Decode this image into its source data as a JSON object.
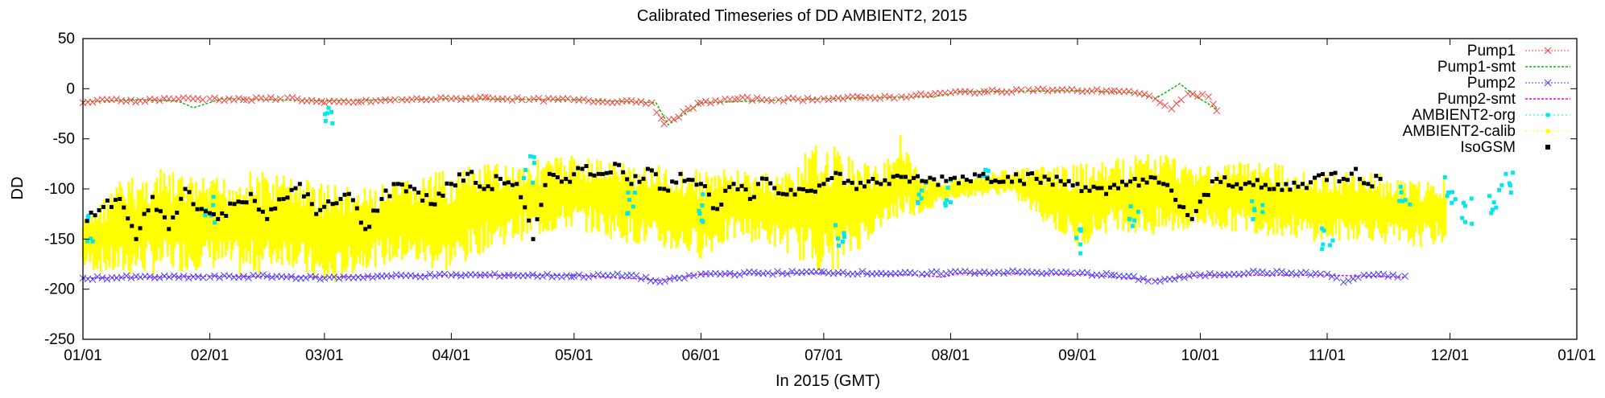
{
  "chart_data": {
    "type": "scatter",
    "title": "Calibrated Timeseries of DD AMBIENT2, 2015",
    "xlabel": "In 2015 (GMT)",
    "ylabel": "DD",
    "ylim": [
      -250,
      50
    ],
    "yticks": [
      50,
      0,
      -50,
      -100,
      -150,
      -200,
      -250
    ],
    "xlim": [
      "2015-01-01",
      "2016-01-01"
    ],
    "xticks": [
      "2015-01-01",
      "2015-02-01",
      "2015-03-01",
      "2015-04-01",
      "2015-05-01",
      "2015-06-01",
      "2015-07-01",
      "2015-08-01",
      "2015-09-01",
      "2015-10-01",
      "2015-11-01",
      "2015-12-01",
      "2016-01-01"
    ],
    "xtick_labels": [
      "01/01",
      "02/01",
      "03/01",
      "04/01",
      "05/01",
      "06/01",
      "07/01",
      "08/01",
      "09/01",
      "10/01",
      "11/01",
      "12/01",
      "01/01"
    ],
    "legend_position": "top-right",
    "grid": false,
    "series": [
      {
        "name": "Pump1",
        "style": "cross",
        "color": "#ff4040",
        "points": [
          [
            "2015-01-01",
            -14
          ],
          [
            "2015-01-08",
            -11
          ],
          [
            "2015-01-15",
            -12
          ],
          [
            "2015-01-22",
            -10
          ],
          [
            "2015-02-01",
            -10
          ],
          [
            "2015-02-10",
            -11
          ],
          [
            "2015-02-20",
            -9
          ],
          [
            "2015-03-01",
            -14
          ],
          [
            "2015-03-10",
            -13
          ],
          [
            "2015-03-20",
            -11
          ],
          [
            "2015-04-01",
            -10
          ],
          [
            "2015-04-10",
            -9
          ],
          [
            "2015-04-20",
            -11
          ],
          [
            "2015-05-01",
            -11
          ],
          [
            "2015-05-08",
            -13
          ],
          [
            "2015-05-15",
            -12
          ],
          [
            "2015-05-20",
            -14
          ],
          [
            "2015-05-23",
            -35
          ],
          [
            "2015-06-01",
            -14
          ],
          [
            "2015-06-10",
            -10
          ],
          [
            "2015-06-20",
            -11
          ],
          [
            "2015-07-01",
            -10
          ],
          [
            "2015-07-10",
            -9
          ],
          [
            "2015-07-20",
            -8
          ],
          [
            "2015-08-01",
            -4
          ],
          [
            "2015-08-10",
            -3
          ],
          [
            "2015-08-20",
            -1
          ],
          [
            "2015-09-01",
            -2
          ],
          [
            "2015-09-10",
            -2
          ],
          [
            "2015-09-15",
            -4
          ],
          [
            "2015-09-20",
            -10
          ],
          [
            "2015-09-24",
            -20
          ],
          [
            "2015-09-28",
            -5
          ],
          [
            "2015-10-03",
            -8
          ],
          [
            "2015-10-05",
            -22
          ]
        ]
      },
      {
        "name": "Pump1-smt",
        "style": "line-dashed",
        "color": "#00c000",
        "points": [
          [
            "2015-01-01",
            -13
          ],
          [
            "2015-01-15",
            -11
          ],
          [
            "2015-01-24",
            -12
          ],
          [
            "2015-01-28",
            -19
          ],
          [
            "2015-02-04",
            -10
          ],
          [
            "2015-03-01",
            -12
          ],
          [
            "2015-04-01",
            -10
          ],
          [
            "2015-05-01",
            -11
          ],
          [
            "2015-05-21",
            -14
          ],
          [
            "2015-05-24",
            -36
          ],
          [
            "2015-06-01",
            -14
          ],
          [
            "2015-07-01",
            -10
          ],
          [
            "2015-07-25",
            -8
          ],
          [
            "2015-07-28",
            -8
          ],
          [
            "2015-08-03",
            -3
          ],
          [
            "2015-09-01",
            -2
          ],
          [
            "2015-09-15",
            -4
          ],
          [
            "2015-09-20",
            -10
          ],
          [
            "2015-09-26",
            5
          ],
          [
            "2015-09-30",
            -8
          ],
          [
            "2015-10-05",
            -20
          ]
        ]
      },
      {
        "name": "Pump2",
        "style": "cross",
        "color": "#4040ff",
        "points": [
          [
            "2015-01-01",
            -189
          ],
          [
            "2015-01-15",
            -188
          ],
          [
            "2015-02-01",
            -188
          ],
          [
            "2015-02-15",
            -187
          ],
          [
            "2015-03-01",
            -189
          ],
          [
            "2015-03-15",
            -187
          ],
          [
            "2015-04-01",
            -186
          ],
          [
            "2015-04-15",
            -186
          ],
          [
            "2015-05-01",
            -187
          ],
          [
            "2015-05-15",
            -186
          ],
          [
            "2015-05-22",
            -193
          ],
          [
            "2015-06-01",
            -185
          ],
          [
            "2015-06-15",
            -184
          ],
          [
            "2015-07-01",
            -183
          ],
          [
            "2015-07-15",
            -184
          ],
          [
            "2015-07-25",
            -185
          ],
          [
            "2015-08-01",
            -183
          ],
          [
            "2015-08-15",
            -183
          ],
          [
            "2015-09-01",
            -184
          ],
          [
            "2015-09-10",
            -186
          ],
          [
            "2015-09-20",
            -192
          ],
          [
            "2015-10-01",
            -186
          ],
          [
            "2015-10-15",
            -183
          ],
          [
            "2015-11-01",
            -185
          ],
          [
            "2015-11-05",
            -193
          ],
          [
            "2015-11-10",
            -186
          ],
          [
            "2015-11-20",
            -187
          ]
        ]
      },
      {
        "name": "Pump2-smt",
        "style": "line-dashed",
        "color": "#e000e0",
        "points": [
          [
            "2015-01-01",
            -189
          ],
          [
            "2015-02-01",
            -187
          ],
          [
            "2015-03-01",
            -188
          ],
          [
            "2015-04-01",
            -186
          ],
          [
            "2015-05-01",
            -186
          ],
          [
            "2015-05-22",
            -191
          ],
          [
            "2015-06-01",
            -185
          ],
          [
            "2015-07-01",
            -184
          ],
          [
            "2015-07-25",
            -186
          ],
          [
            "2015-07-30",
            -188
          ],
          [
            "2015-08-03",
            -184
          ],
          [
            "2015-09-01",
            -185
          ],
          [
            "2015-09-20",
            -191
          ],
          [
            "2015-10-01",
            -186
          ],
          [
            "2015-11-01",
            -186
          ],
          [
            "2015-11-20",
            -188
          ]
        ]
      },
      {
        "name": "AMBIENT2-org",
        "style": "dots",
        "color": "#00e8e8",
        "points": [
          [
            "2015-01-03",
            -140
          ],
          [
            "2015-02-01",
            -120
          ],
          [
            "2015-03-02",
            -30
          ],
          [
            "2015-04-20",
            -80
          ],
          [
            "2015-05-15",
            -110
          ],
          [
            "2015-06-01",
            -120
          ],
          [
            "2015-07-05",
            -150
          ],
          [
            "2015-07-25",
            -100
          ],
          [
            "2015-08-01",
            -105
          ],
          [
            "2015-08-10",
            -90
          ],
          [
            "2015-09-01",
            -150
          ],
          [
            "2015-09-15",
            -130
          ],
          [
            "2015-10-15",
            -120
          ],
          [
            "2015-11-01",
            -145
          ],
          [
            "2015-11-20",
            -110
          ],
          [
            "2015-12-01",
            -100
          ],
          [
            "2015-12-05",
            -120
          ],
          [
            "2015-12-12",
            -110
          ],
          [
            "2015-12-15",
            -90
          ]
        ]
      },
      {
        "name": "AMBIENT2-calib",
        "style": "band",
        "color": "#ffff00",
        "points": [
          [
            "2015-01-01",
            -130,
            -180
          ],
          [
            "2015-01-10",
            -90,
            -190
          ],
          [
            "2015-01-20",
            -80,
            -185
          ],
          [
            "2015-02-01",
            -90,
            -180
          ],
          [
            "2015-02-10",
            -80,
            -190
          ],
          [
            "2015-02-20",
            -85,
            -175
          ],
          [
            "2015-03-01",
            -90,
            -205
          ],
          [
            "2015-03-10",
            -100,
            -180
          ],
          [
            "2015-03-20",
            -90,
            -175
          ],
          [
            "2015-04-01",
            -80,
            -185
          ],
          [
            "2015-04-10",
            -75,
            -160
          ],
          [
            "2015-04-20",
            -70,
            -150
          ],
          [
            "2015-05-01",
            -65,
            -140
          ],
          [
            "2015-05-10",
            -70,
            -150
          ],
          [
            "2015-05-20",
            -75,
            -160
          ],
          [
            "2015-06-01",
            -80,
            -170
          ],
          [
            "2015-06-10",
            -80,
            -150
          ],
          [
            "2015-06-20",
            -85,
            -160
          ],
          [
            "2015-07-01",
            -50,
            -185
          ],
          [
            "2015-07-05",
            -60,
            -180
          ],
          [
            "2015-07-15",
            -80,
            -140
          ],
          [
            "2015-07-20",
            -40,
            -130
          ],
          [
            "2015-07-25",
            -90,
            -125
          ],
          [
            "2015-08-01",
            -90,
            -110
          ],
          [
            "2015-08-15",
            -80,
            -105
          ],
          [
            "2015-09-01",
            -75,
            -160
          ],
          [
            "2015-09-10",
            -70,
            -140
          ],
          [
            "2015-09-20",
            -60,
            -150
          ],
          [
            "2015-10-01",
            -75,
            -140
          ],
          [
            "2015-10-15",
            -70,
            -145
          ],
          [
            "2015-11-01",
            -85,
            -155
          ],
          [
            "2015-11-10",
            -80,
            -150
          ],
          [
            "2015-11-20",
            -90,
            -160
          ],
          [
            "2015-11-30",
            -90,
            -155
          ]
        ]
      },
      {
        "name": "IsoGSM",
        "style": "square",
        "color": "#000000",
        "points": [
          [
            "2015-01-02",
            -132
          ],
          [
            "2015-01-06",
            -118
          ],
          [
            "2015-01-10",
            -110
          ],
          [
            "2015-01-14",
            -150
          ],
          [
            "2015-01-18",
            -108
          ],
          [
            "2015-01-22",
            -140
          ],
          [
            "2015-01-26",
            -100
          ],
          [
            "2015-01-30",
            -120
          ],
          [
            "2015-02-03",
            -130
          ],
          [
            "2015-02-07",
            -115
          ],
          [
            "2015-02-11",
            -105
          ],
          [
            "2015-02-15",
            -130
          ],
          [
            "2015-02-19",
            -110
          ],
          [
            "2015-02-23",
            -95
          ],
          [
            "2015-02-27",
            -125
          ],
          [
            "2015-03-03",
            -115
          ],
          [
            "2015-03-07",
            -105
          ],
          [
            "2015-03-11",
            -140
          ],
          [
            "2015-03-15",
            -110
          ],
          [
            "2015-03-19",
            -95
          ],
          [
            "2015-03-23",
            -100
          ],
          [
            "2015-03-27",
            -115
          ],
          [
            "2015-04-01",
            -95
          ],
          [
            "2015-04-05",
            -85
          ],
          [
            "2015-04-09",
            -100
          ],
          [
            "2015-04-13",
            -90
          ],
          [
            "2015-04-17",
            -95
          ],
          [
            "2015-04-21",
            -150
          ],
          [
            "2015-04-25",
            -85
          ],
          [
            "2015-04-29",
            -90
          ],
          [
            "2015-05-03",
            -80
          ],
          [
            "2015-05-07",
            -85
          ],
          [
            "2015-05-11",
            -75
          ],
          [
            "2015-05-15",
            -95
          ],
          [
            "2015-05-19",
            -80
          ],
          [
            "2015-05-23",
            -100
          ],
          [
            "2015-05-27",
            -85
          ],
          [
            "2015-06-01",
            -95
          ],
          [
            "2015-06-05",
            -120
          ],
          [
            "2015-06-09",
            -95
          ],
          [
            "2015-06-13",
            -110
          ],
          [
            "2015-06-17",
            -90
          ],
          [
            "2015-06-21",
            -105
          ],
          [
            "2015-06-25",
            -100
          ],
          [
            "2015-07-01",
            -95
          ],
          [
            "2015-07-05",
            -85
          ],
          [
            "2015-07-09",
            -100
          ],
          [
            "2015-07-13",
            -90
          ],
          [
            "2015-07-17",
            -95
          ],
          [
            "2015-07-21",
            -88
          ],
          [
            "2015-07-25",
            -92
          ],
          [
            "2015-08-01",
            -90
          ],
          [
            "2015-08-08",
            -87
          ],
          [
            "2015-08-15",
            -88
          ],
          [
            "2015-08-22",
            -90
          ],
          [
            "2015-09-01",
            -95
          ],
          [
            "2015-09-08",
            -105
          ],
          [
            "2015-09-15",
            -90
          ],
          [
            "2015-09-22",
            -95
          ],
          [
            "2015-09-29",
            -130
          ],
          [
            "2015-10-05",
            -90
          ],
          [
            "2015-10-12",
            -95
          ],
          [
            "2015-10-19",
            -100
          ],
          [
            "2015-10-26",
            -95
          ],
          [
            "2015-11-02",
            -85
          ],
          [
            "2015-11-05",
            -90
          ],
          [
            "2015-11-08",
            -80
          ],
          [
            "2015-11-11",
            -95
          ],
          [
            "2015-11-14",
            -90
          ]
        ]
      }
    ]
  }
}
